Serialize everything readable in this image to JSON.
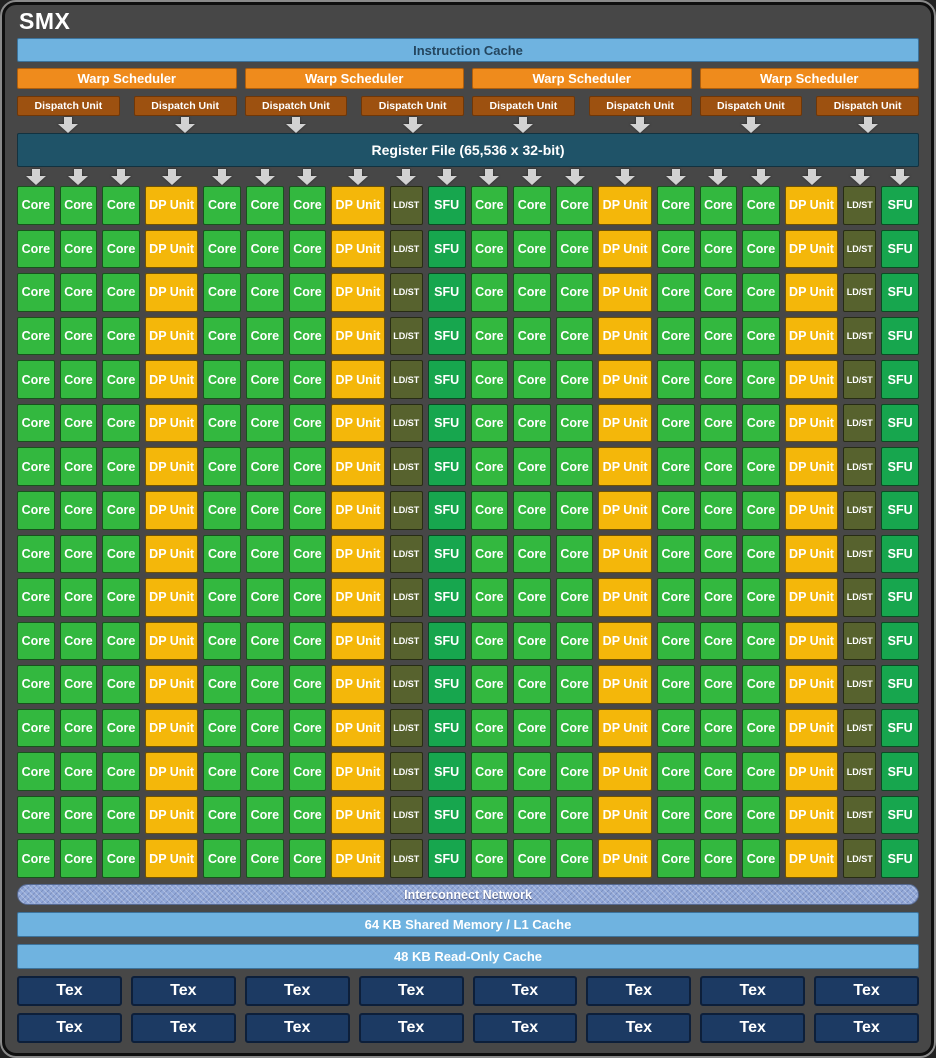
{
  "title": "SMX",
  "colors": {
    "frame_bg": "#474747",
    "lightblue": "#6fb3e0",
    "orange": "#ef8b1c",
    "dkorange": "#9d5110",
    "teal": "#1f5368",
    "core_green": "#33b83f",
    "dp_amber": "#f4b70a",
    "ldst_olive": "#57622e",
    "sfu_green": "#17a64e",
    "periwinkle": "#92a8d8",
    "tex_navy": "#1c3a63"
  },
  "instruction_cache": {
    "label": "Instruction Cache"
  },
  "warp_schedulers": [
    "Warp Scheduler",
    "Warp Scheduler",
    "Warp Scheduler",
    "Warp Scheduler"
  ],
  "dispatch_units": [
    "Dispatch Unit",
    "Dispatch Unit",
    "Dispatch Unit",
    "Dispatch Unit",
    "Dispatch Unit",
    "Dispatch Unit",
    "Dispatch Unit",
    "Dispatch Unit"
  ],
  "register_file": {
    "label": "Register File (65,536 x 32-bit)"
  },
  "core_grid": {
    "rows": 16,
    "row_pattern": [
      "core",
      "core",
      "core",
      "dp",
      "core",
      "core",
      "core",
      "dp",
      "ldst",
      "sfu",
      "core",
      "core",
      "core",
      "dp",
      "core",
      "core",
      "core",
      "dp",
      "ldst",
      "sfu"
    ],
    "cell_labels": {
      "core": "Core",
      "dp": "DP Unit",
      "ldst": "LD/ST",
      "sfu": "SFU"
    }
  },
  "interconnect": {
    "label": "Interconnect Network"
  },
  "shared_memory": {
    "label": "64 KB Shared Memory / L1 Cache"
  },
  "readonly_cache": {
    "label": "48 KB Read-Only Cache"
  },
  "tex_units": {
    "rows": 2,
    "per_row": 8,
    "label": "Tex"
  }
}
